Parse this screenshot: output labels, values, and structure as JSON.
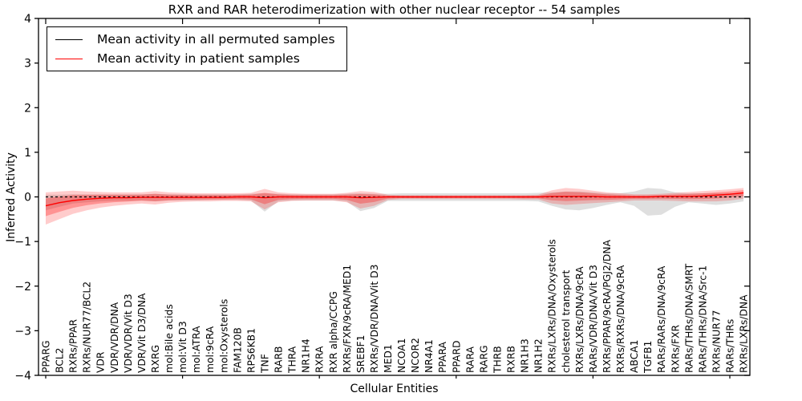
{
  "title": "RXR and RAR heterodimerization with other nuclear receptor -- 54 samples",
  "xlabel": "Cellular Entities",
  "ylabel": "Inferred Activity",
  "legend": {
    "items": [
      {
        "label": "Mean activity in all permuted samples",
        "color": "#000000"
      },
      {
        "label": "Mean activity in patient samples",
        "color": "#ff0000"
      }
    ]
  },
  "colors": {
    "permuted_line": "#000000",
    "permuted_band": "rgba(150,150,150,0.30)",
    "patient_line": "#ff0000",
    "patient_band_outer": "rgba(255,0,0,0.20)",
    "patient_band_inner": "rgba(255,0,0,0.28)",
    "axis": "#000000"
  },
  "chart_data": {
    "type": "line",
    "title": "RXR and RAR heterodimerization with other nuclear receptor -- 54 samples",
    "xlabel": "Cellular Entities",
    "ylabel": "Inferred Activity",
    "ylim": [
      -4,
      4
    ],
    "yticks": [
      4,
      3,
      2,
      1,
      0,
      -1,
      -2,
      -3,
      -4
    ],
    "xtick_step": 10,
    "grid": false,
    "legend_position": "upper left",
    "categories": [
      "PPARG",
      "BCL2",
      "RXRs/PPAR",
      "RXRs/NUR77/BCL2",
      "VDR",
      "VDR/VDR/DNA",
      "VDR/VDR/Vit D3",
      "VDR/Vit D3/DNA",
      "RXRG",
      "mol:Bile acids",
      "mol:Vit D3",
      "mol:ATRA",
      "mol:9cRA",
      "mol:Oxysterols",
      "FAM120B",
      "RPS6KB1",
      "TNF",
      "RARB",
      "THRA",
      "NR1H4",
      "RXRA",
      "RXR alpha/CCPG",
      "RXRs/FXR/9cRA/MED1",
      "SREBF1",
      "RXRs/VDR/DNA/Vit D3",
      "MED1",
      "NCOA1",
      "NCOR2",
      "NR4A1",
      "PPARA",
      "PPARD",
      "RARA",
      "RARG",
      "THRB",
      "RXRB",
      "NR1H3",
      "NR1H2",
      "RXRs/LXRs/DNA/Oxysterols",
      "cholesterol transport",
      "RXRs/LXRs/DNA/9cRA",
      "RARs/VDR/DNA/Vit D3",
      "RXRs/PPAR/9cRA/PGJ2/DNA",
      "RXRs/RXRs/DNA/9cRA",
      "ABCA1",
      "TGFB1",
      "RARs/RARs/DNA/9cRA",
      "RXRs/FXR",
      "RARs/THRs/DNA/SMRT",
      "RARs/THRs/DNA/Src-1",
      "RXRs/NUR77",
      "RARs/THRs",
      "RXRs/LXRs/DNA"
    ],
    "series": [
      {
        "name": "Mean activity in all permuted samples",
        "style": "dashed",
        "values": [
          0,
          0,
          0,
          0,
          0,
          0,
          0,
          0,
          0,
          0,
          0,
          0,
          0,
          0,
          0,
          0,
          0,
          0,
          0,
          0,
          0,
          0,
          0,
          0,
          0,
          0,
          0,
          0,
          0,
          0,
          0,
          0,
          0,
          0,
          0,
          0,
          0,
          0,
          0,
          0,
          0,
          0,
          0,
          0,
          0,
          0,
          0,
          0,
          0,
          0,
          0,
          0
        ],
        "band_upper": [
          0.05,
          0.05,
          0.06,
          0.06,
          0.06,
          0.06,
          0.06,
          0.06,
          0.07,
          0.06,
          0.06,
          0.06,
          0.06,
          0.06,
          0.06,
          0.07,
          0.08,
          0.07,
          0.06,
          0.06,
          0.06,
          0.06,
          0.07,
          0.08,
          0.07,
          0.07,
          0.08,
          0.08,
          0.08,
          0.08,
          0.08,
          0.08,
          0.08,
          0.08,
          0.08,
          0.08,
          0.09,
          0.1,
          0.12,
          0.12,
          0.1,
          0.08,
          0.08,
          0.12,
          0.2,
          0.18,
          0.1,
          0.08,
          0.08,
          0.08,
          0.08,
          0.06
        ],
        "band_lower": [
          -0.3,
          -0.22,
          -0.15,
          -0.12,
          -0.1,
          -0.09,
          -0.09,
          -0.08,
          -0.1,
          -0.08,
          -0.08,
          -0.08,
          -0.07,
          -0.07,
          -0.07,
          -0.08,
          -0.33,
          -0.1,
          -0.08,
          -0.08,
          -0.08,
          -0.08,
          -0.1,
          -0.32,
          -0.25,
          -0.09,
          -0.09,
          -0.09,
          -0.09,
          -0.09,
          -0.09,
          -0.09,
          -0.09,
          -0.09,
          -0.09,
          -0.09,
          -0.1,
          -0.2,
          -0.28,
          -0.3,
          -0.25,
          -0.18,
          -0.12,
          -0.2,
          -0.42,
          -0.4,
          -0.22,
          -0.12,
          -0.15,
          -0.18,
          -0.15,
          -0.1
        ]
      },
      {
        "name": "Mean activity in patient samples",
        "style": "solid",
        "values": [
          -0.2,
          -0.13,
          -0.08,
          -0.05,
          -0.03,
          -0.02,
          -0.02,
          -0.01,
          -0.01,
          -0.01,
          -0.01,
          -0.01,
          -0.01,
          -0.01,
          0,
          0,
          -0.02,
          0,
          0,
          0,
          0,
          0,
          0,
          -0.02,
          -0.01,
          0,
          0,
          0,
          0,
          0,
          0,
          0,
          0,
          0,
          0,
          0,
          0,
          0.01,
          0.01,
          0.01,
          0.01,
          0,
          0,
          0,
          0,
          0.01,
          0.01,
          0.01,
          0.02,
          0.04,
          0.06,
          0.09
        ],
        "band_upper": [
          0.1,
          0.12,
          0.14,
          0.12,
          0.11,
          0.1,
          0.1,
          0.1,
          0.13,
          0.1,
          0.09,
          0.08,
          0.08,
          0.08,
          0.08,
          0.09,
          0.18,
          0.1,
          0.08,
          0.07,
          0.07,
          0.07,
          0.09,
          0.13,
          0.11,
          0.05,
          0.04,
          0.04,
          0.04,
          0.04,
          0.04,
          0.04,
          0.04,
          0.04,
          0.04,
          0.04,
          0.05,
          0.15,
          0.2,
          0.18,
          0.14,
          0.1,
          0.08,
          0.06,
          0.06,
          0.07,
          0.09,
          0.11,
          0.13,
          0.15,
          0.17,
          0.2
        ],
        "band_lower": [
          -0.62,
          -0.5,
          -0.38,
          -0.3,
          -0.24,
          -0.2,
          -0.17,
          -0.15,
          -0.17,
          -0.13,
          -0.11,
          -0.1,
          -0.1,
          -0.09,
          -0.09,
          -0.1,
          -0.28,
          -0.12,
          -0.09,
          -0.08,
          -0.08,
          -0.08,
          -0.12,
          -0.26,
          -0.2,
          -0.07,
          -0.05,
          -0.05,
          -0.05,
          -0.05,
          -0.05,
          -0.05,
          -0.05,
          -0.05,
          -0.05,
          -0.06,
          -0.06,
          -0.15,
          -0.18,
          -0.16,
          -0.14,
          -0.12,
          -0.1,
          -0.08,
          -0.08,
          -0.08,
          -0.09,
          -0.1,
          -0.1,
          -0.1,
          -0.08,
          -0.04
        ]
      }
    ]
  }
}
